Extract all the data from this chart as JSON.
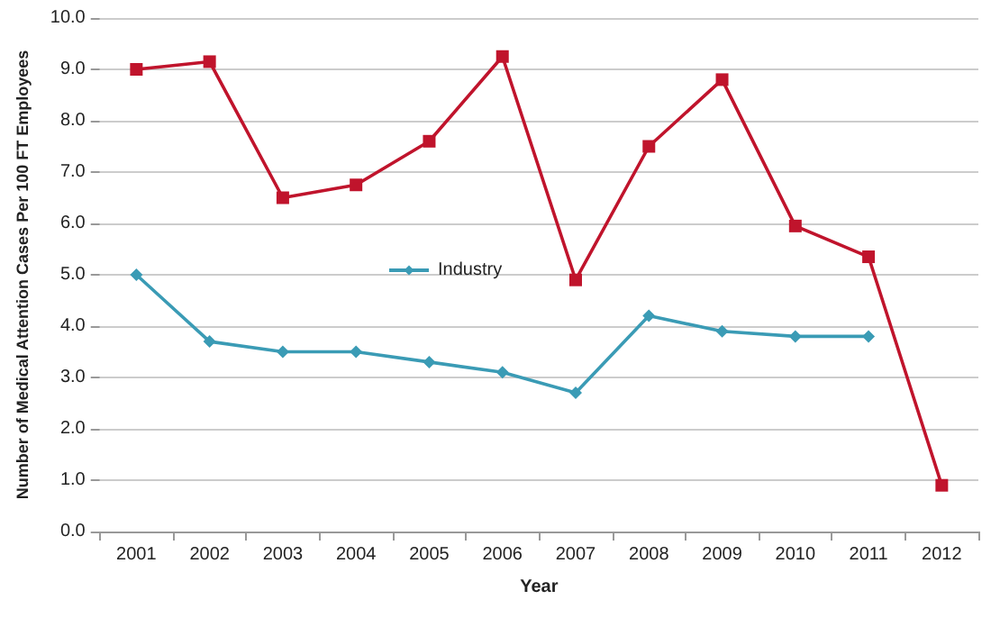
{
  "chart_data": {
    "type": "line",
    "xlabel": "Year",
    "ylabel": "Number of Medical Attention Cases Per 100 FT Employees",
    "categories": [
      "2001",
      "2002",
      "2003",
      "2004",
      "2005",
      "2006",
      "2007",
      "2008",
      "2009",
      "2010",
      "2011",
      "2012"
    ],
    "series": [
      {
        "color": "#c0142c",
        "marker": "square",
        "values": [
          9.0,
          9.15,
          6.5,
          6.75,
          7.6,
          9.25,
          4.9,
          7.5,
          8.8,
          5.95,
          5.35,
          0.9
        ]
      },
      {
        "name": "Industry",
        "color": "#3a9bb5",
        "marker": "diamond",
        "values": [
          5.0,
          3.7,
          3.5,
          3.5,
          3.3,
          3.1,
          2.7,
          4.2,
          3.9,
          3.8,
          3.8,
          null
        ]
      }
    ],
    "ylim": [
      0,
      10
    ],
    "yticks": [
      {
        "value": 0,
        "label": "0.0"
      },
      {
        "value": 1,
        "label": "1.0"
      },
      {
        "value": 2,
        "label": "2.0"
      },
      {
        "value": 3,
        "label": "3.0"
      },
      {
        "value": 4,
        "label": "4.0"
      },
      {
        "value": 5,
        "label": "5.0"
      },
      {
        "value": 6,
        "label": "6.0"
      },
      {
        "value": 7,
        "label": "7.0"
      },
      {
        "value": 8,
        "label": "8.0"
      },
      {
        "value": 9,
        "label": "9.0"
      },
      {
        "value": 10,
        "label": "10.0"
      }
    ],
    "grid": "y",
    "legend": "center"
  }
}
